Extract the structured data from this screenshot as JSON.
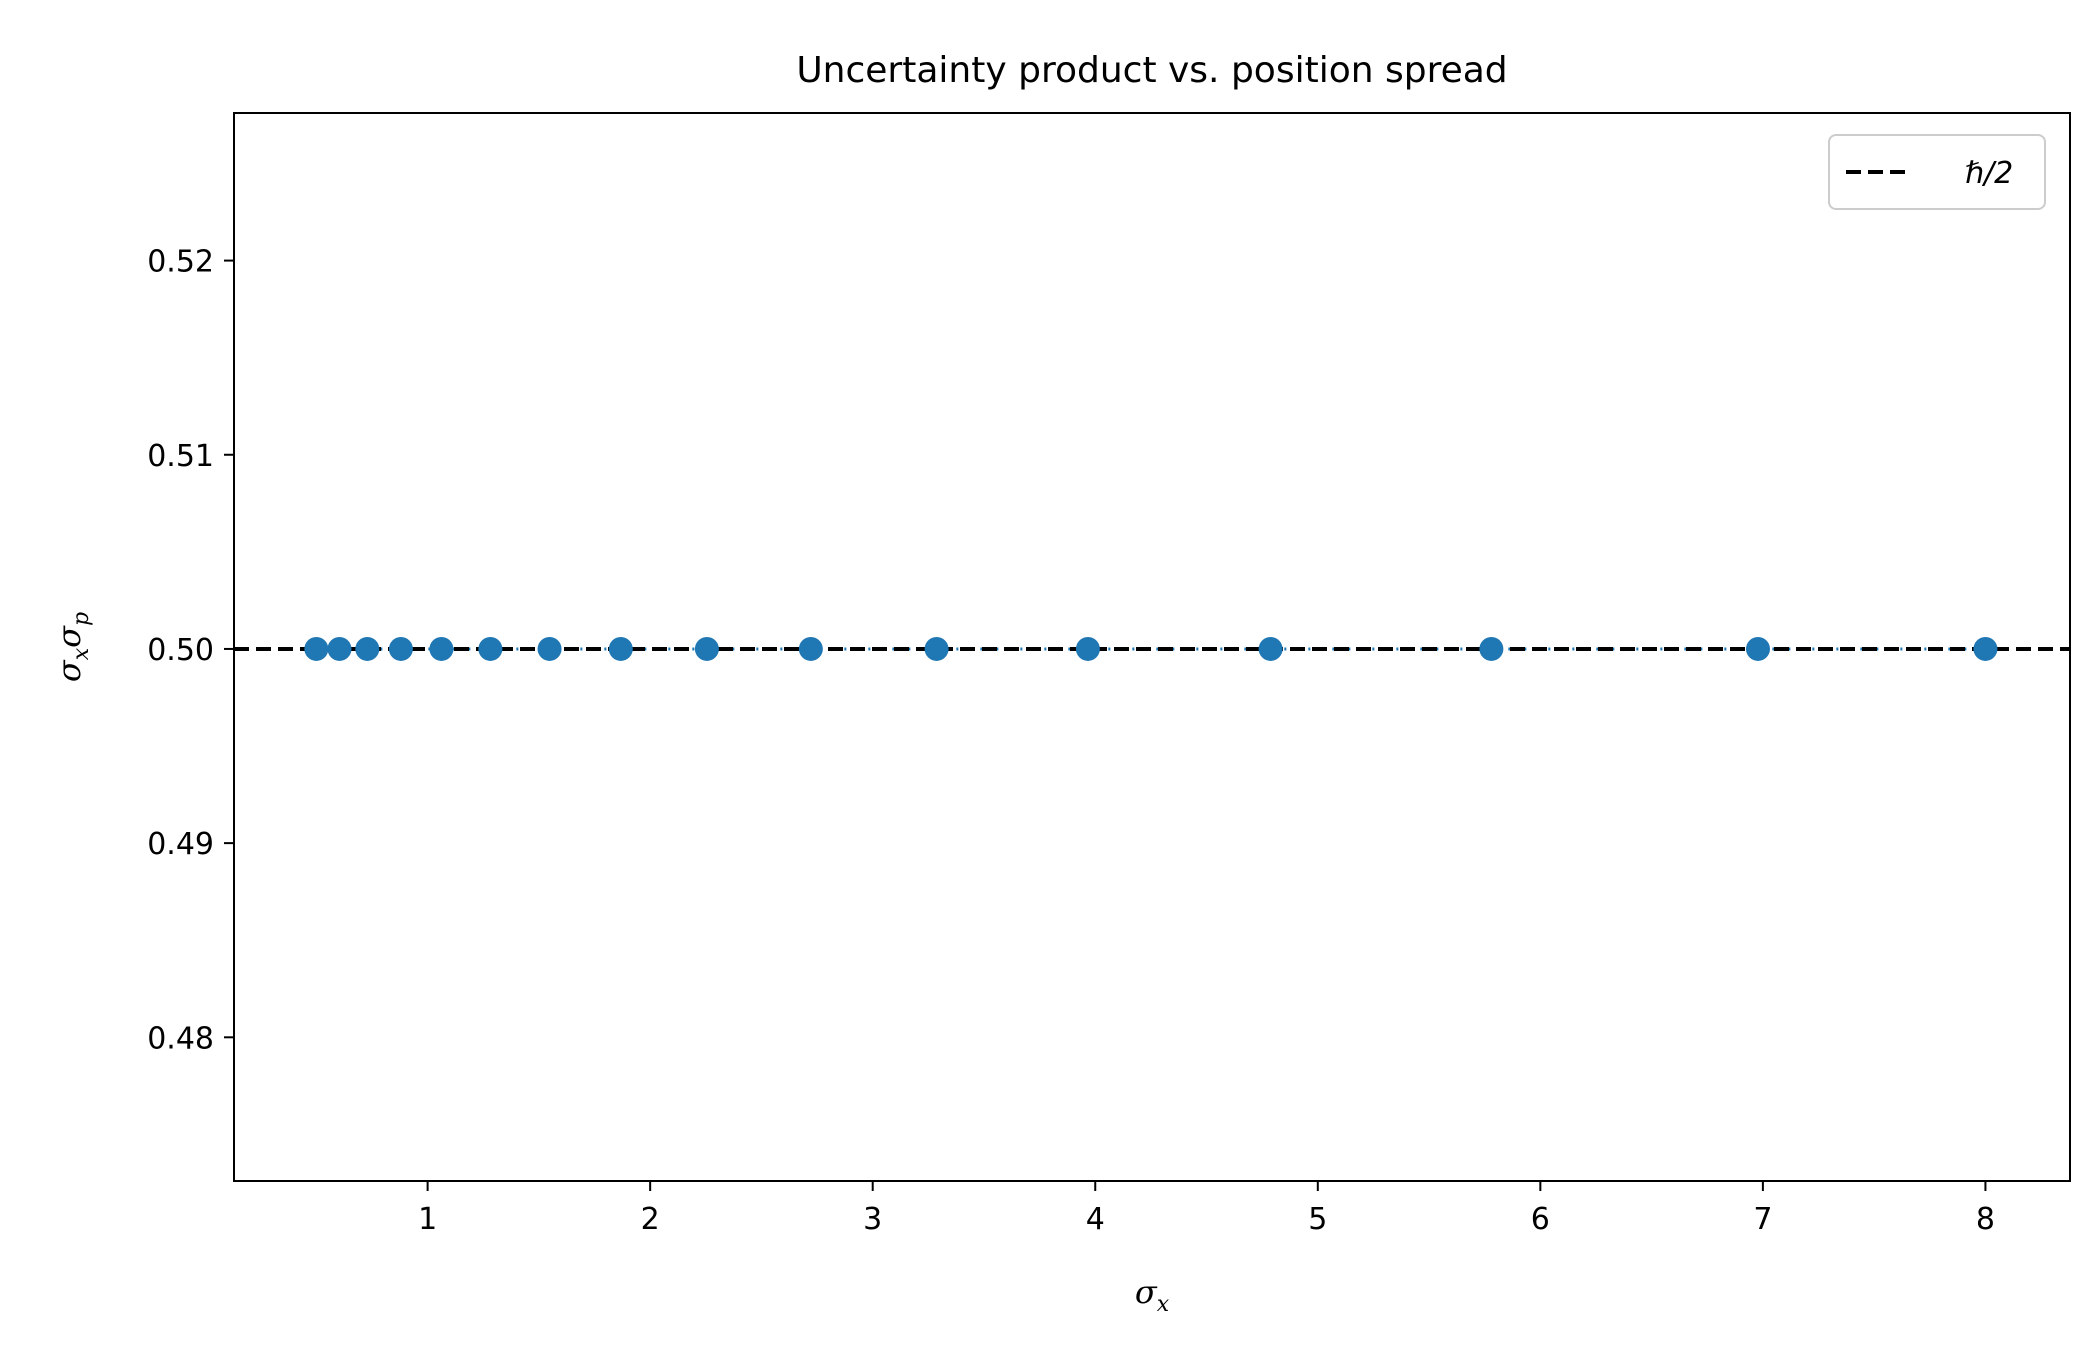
{
  "chart_data": {
    "type": "scatter",
    "title": "Uncertainty product vs. position spread",
    "xlabel": "σx",
    "ylabel": "σxσp",
    "xlim": [
      0.13,
      8.38
    ],
    "ylim": [
      0.4726,
      0.5276
    ],
    "xticks": [
      1,
      2,
      3,
      4,
      5,
      6,
      7,
      8
    ],
    "yticks": [
      0.48,
      0.49,
      0.5,
      0.51,
      0.52
    ],
    "ytick_labels": [
      "0.48",
      "0.49",
      "0.50",
      "0.51",
      "0.52"
    ],
    "grid": false,
    "legend": {
      "placement": "top-right",
      "entries": [
        "ℏ/2"
      ]
    },
    "colors": {
      "points": "#1f77b4",
      "reference": "#000000"
    },
    "series": [
      {
        "x": [
          0.5,
          0.604,
          0.729,
          0.88,
          1.062,
          1.282,
          1.548,
          1.868,
          2.255,
          2.722,
          3.287,
          3.967,
          4.788,
          5.78,
          6.978,
          8.0
        ],
        "y": [
          0.5,
          0.5,
          0.5,
          0.5,
          0.5,
          0.5,
          0.5,
          0.5,
          0.5,
          0.5,
          0.5,
          0.5,
          0.5,
          0.5,
          0.5,
          0.5
        ]
      }
    ],
    "reference_line": {
      "name": "ℏ/2",
      "y": 0.5,
      "style": "dashed"
    }
  }
}
